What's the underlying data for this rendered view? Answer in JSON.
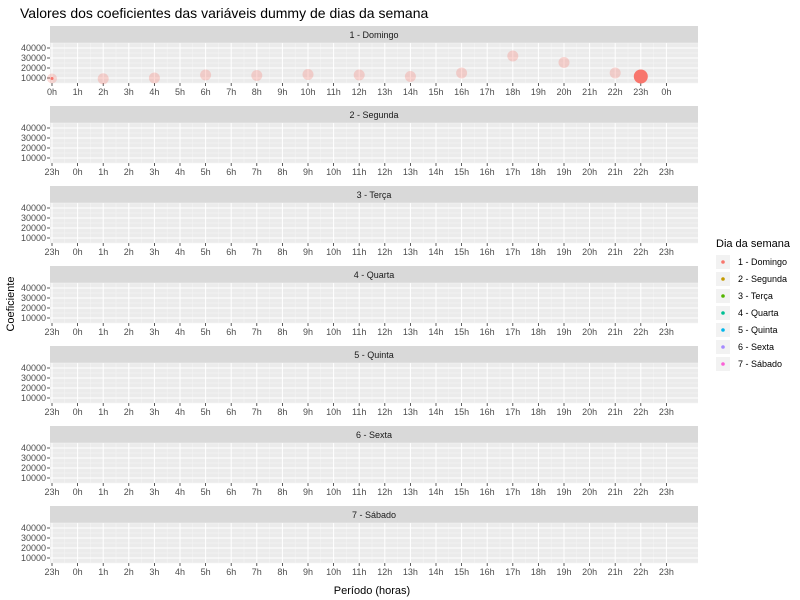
{
  "chart_data": {
    "type": "scatter",
    "title": "Valores dos coeficientes das variáveis dummy de dias da semana",
    "xlabel": "Período (horas)",
    "ylabel": "Coeficiente",
    "y_ticks": [
      10000,
      20000,
      30000,
      40000
    ],
    "ylim": [
      5000,
      45000
    ],
    "legend": {
      "title": "Dia da semana",
      "position": "right",
      "entries": [
        {
          "label": "1 - Domingo",
          "color": "#F8766D"
        },
        {
          "label": "2 - Segunda",
          "color": "#C49A00"
        },
        {
          "label": "3 - Terça",
          "color": "#53B400"
        },
        {
          "label": "4 - Quarta",
          "color": "#00C094"
        },
        {
          "label": "5 - Quinta",
          "color": "#00B6EB"
        },
        {
          "label": "6 - Sexta",
          "color": "#A58AFF"
        },
        {
          "label": "7 - Sábado",
          "color": "#FB61D7"
        }
      ]
    },
    "panels": [
      {
        "strip": "1 - Domingo",
        "x_ticks": [
          "0h",
          "1h",
          "2h",
          "3h",
          "4h",
          "5h",
          "6h",
          "7h",
          "8h",
          "9h",
          "10h",
          "11h",
          "12h",
          "13h",
          "14h",
          "15h",
          "16h",
          "17h",
          "18h",
          "19h",
          "20h",
          "21h",
          "22h",
          "23h",
          "0h"
        ],
        "points": [
          {
            "x": "0h",
            "y": 9500
          },
          {
            "x": "2h",
            "y": 9200
          },
          {
            "x": "4h",
            "y": 10000
          },
          {
            "x": "6h",
            "y": 13000
          },
          {
            "x": "8h",
            "y": 12500
          },
          {
            "x": "10h",
            "y": 13500
          },
          {
            "x": "12h",
            "y": 13000
          },
          {
            "x": "14h",
            "y": 11500
          },
          {
            "x": "16h",
            "y": 15000
          },
          {
            "x": "18h",
            "y": 32000
          },
          {
            "x": "20h",
            "y": 25500
          },
          {
            "x": "22h",
            "y": 15000
          },
          {
            "x": "23h",
            "y": 11500
          }
        ]
      },
      {
        "strip": "2 - Segunda",
        "x_ticks": [
          "23h",
          "0h",
          "1h",
          "2h",
          "3h",
          "4h",
          "5h",
          "6h",
          "7h",
          "8h",
          "9h",
          "10h",
          "11h",
          "12h",
          "13h",
          "14h",
          "15h",
          "16h",
          "17h",
          "18h",
          "19h",
          "20h",
          "21h",
          "22h",
          "23h"
        ],
        "points": []
      },
      {
        "strip": "3 - Terça",
        "x_ticks": [
          "23h",
          "0h",
          "1h",
          "2h",
          "3h",
          "4h",
          "5h",
          "6h",
          "7h",
          "8h",
          "9h",
          "10h",
          "11h",
          "12h",
          "13h",
          "14h",
          "15h",
          "16h",
          "17h",
          "18h",
          "19h",
          "20h",
          "21h",
          "22h",
          "23h"
        ],
        "points": []
      },
      {
        "strip": "4 - Quarta",
        "x_ticks": [
          "23h",
          "0h",
          "1h",
          "2h",
          "3h",
          "4h",
          "5h",
          "6h",
          "7h",
          "8h",
          "9h",
          "10h",
          "11h",
          "12h",
          "13h",
          "14h",
          "15h",
          "16h",
          "17h",
          "18h",
          "19h",
          "20h",
          "21h",
          "22h",
          "23h"
        ],
        "points": []
      },
      {
        "strip": "5 - Quinta",
        "x_ticks": [
          "23h",
          "0h",
          "1h",
          "2h",
          "3h",
          "4h",
          "5h",
          "6h",
          "7h",
          "8h",
          "9h",
          "10h",
          "11h",
          "12h",
          "13h",
          "14h",
          "15h",
          "16h",
          "17h",
          "18h",
          "19h",
          "20h",
          "21h",
          "22h",
          "23h"
        ],
        "points": []
      },
      {
        "strip": "6 - Sexta",
        "x_ticks": [
          "23h",
          "0h",
          "1h",
          "2h",
          "3h",
          "4h",
          "5h",
          "6h",
          "7h",
          "8h",
          "9h",
          "10h",
          "11h",
          "12h",
          "13h",
          "14h",
          "15h",
          "16h",
          "17h",
          "18h",
          "19h",
          "20h",
          "21h",
          "22h",
          "23h"
        ],
        "points": []
      },
      {
        "strip": "7 - Sábado",
        "x_ticks": [
          "23h",
          "0h",
          "1h",
          "2h",
          "3h",
          "4h",
          "5h",
          "6h",
          "7h",
          "8h",
          "9h",
          "10h",
          "11h",
          "12h",
          "13h",
          "14h",
          "15h",
          "16h",
          "17h",
          "18h",
          "19h",
          "20h",
          "21h",
          "22h",
          "23h"
        ],
        "points": []
      }
    ]
  }
}
